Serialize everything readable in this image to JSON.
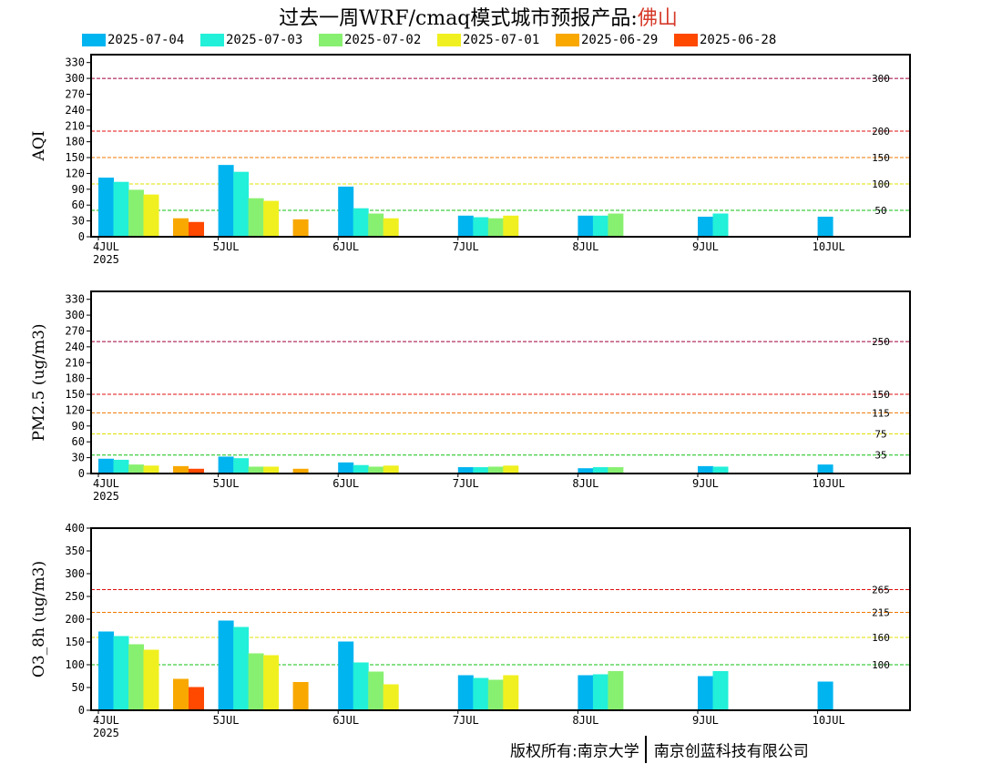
{
  "title": {
    "prefix": "过去一周WRF/cmaq模式城市预报产品:",
    "city": "佛山"
  },
  "colors": {
    "2025-07-04": "#00b4f0",
    "2025-07-03": "#22f0d8",
    "2025-07-02": "#88f070",
    "2025-07-01": "#f0f020",
    "2025-06-29": "#f8a800",
    "2025-06-28": "#ff4800"
  },
  "footer": {
    "left": "版权所有:南京大学",
    "right": "南京创蓝科技有限公司"
  },
  "chart_data": [
    {
      "type": "bar",
      "ylabel": "AQI",
      "ylim": [
        0,
        345
      ],
      "yticks": [
        0,
        30,
        60,
        90,
        120,
        150,
        180,
        210,
        240,
        270,
        300,
        330
      ],
      "categories": [
        "4JUL",
        "5JUL",
        "6JUL",
        "7JUL",
        "8JUL",
        "9JUL",
        "10JUL"
      ],
      "year_label": "2025",
      "thresholds": [
        {
          "value": 300,
          "label": "300",
          "color": "#a0003c"
        },
        {
          "value": 200,
          "label": "200",
          "color": "#e01010"
        },
        {
          "value": 150,
          "label": "150",
          "color": "#f07800"
        },
        {
          "value": 100,
          "label": "100",
          "color": "#e0e000"
        },
        {
          "value": 50,
          "label": "50",
          "color": "#10c010"
        }
      ],
      "series": [
        {
          "name": "2025-07-04",
          "values": [
            112,
            136,
            95,
            40,
            40,
            38,
            38
          ]
        },
        {
          "name": "2025-07-03",
          "values": [
            104,
            123,
            54,
            37,
            40,
            44,
            null
          ]
        },
        {
          "name": "2025-07-02",
          "values": [
            89,
            73,
            44,
            35,
            44,
            null,
            null
          ]
        },
        {
          "name": "2025-07-01",
          "values": [
            80,
            68,
            35,
            40,
            null,
            null,
            null
          ]
        },
        {
          "name": "2025-06-29",
          "values": [
            35,
            33,
            null,
            null,
            null,
            null,
            null
          ]
        },
        {
          "name": "2025-06-28",
          "values": [
            28,
            null,
            null,
            null,
            null,
            null,
            null
          ]
        }
      ]
    },
    {
      "type": "bar",
      "ylabel": "PM2.5 (ug/m3)",
      "ylim": [
        0,
        345
      ],
      "yticks": [
        0,
        30,
        60,
        90,
        120,
        150,
        180,
        210,
        240,
        270,
        300,
        330
      ],
      "categories": [
        "4JUL",
        "5JUL",
        "6JUL",
        "7JUL",
        "8JUL",
        "9JUL",
        "10JUL"
      ],
      "year_label": "2025",
      "thresholds": [
        {
          "value": 250,
          "label": "250",
          "color": "#a0003c"
        },
        {
          "value": 150,
          "label": "150",
          "color": "#e01010"
        },
        {
          "value": 115,
          "label": "115",
          "color": "#f07800"
        },
        {
          "value": 75,
          "label": "75",
          "color": "#e0e000"
        },
        {
          "value": 35,
          "label": "35",
          "color": "#10c010"
        }
      ],
      "series": [
        {
          "name": "2025-07-04",
          "values": [
            28,
            32,
            21,
            12,
            10,
            14,
            17
          ]
        },
        {
          "name": "2025-07-03",
          "values": [
            26,
            29,
            16,
            12,
            12,
            13,
            null
          ]
        },
        {
          "name": "2025-07-02",
          "values": [
            17,
            13,
            13,
            13,
            12,
            null,
            null
          ]
        },
        {
          "name": "2025-07-01",
          "values": [
            15,
            13,
            15,
            15,
            null,
            null,
            null
          ]
        },
        {
          "name": "2025-06-29",
          "values": [
            14,
            9,
            null,
            null,
            null,
            null,
            null
          ]
        },
        {
          "name": "2025-06-28",
          "values": [
            9,
            null,
            null,
            null,
            null,
            null,
            null
          ]
        }
      ]
    },
    {
      "type": "bar",
      "ylabel": "O3_8h (ug/m3)",
      "ylim": [
        0,
        400
      ],
      "yticks": [
        0,
        50,
        100,
        150,
        200,
        250,
        300,
        350,
        400
      ],
      "categories": [
        "4JUL",
        "5JUL",
        "6JUL",
        "7JUL",
        "8JUL",
        "9JUL",
        "10JUL"
      ],
      "year_label": "2025",
      "thresholds": [
        {
          "value": 265,
          "label": "265",
          "color": "#e01010"
        },
        {
          "value": 215,
          "label": "215",
          "color": "#f07800"
        },
        {
          "value": 160,
          "label": "160",
          "color": "#e0e000"
        },
        {
          "value": 100,
          "label": "100",
          "color": "#10c010"
        }
      ],
      "series": [
        {
          "name": "2025-07-04",
          "values": [
            173,
            197,
            151,
            77,
            77,
            75,
            63
          ]
        },
        {
          "name": "2025-07-03",
          "values": [
            163,
            183,
            105,
            71,
            79,
            86,
            null
          ]
        },
        {
          "name": "2025-07-02",
          "values": [
            145,
            125,
            85,
            67,
            86,
            null,
            null
          ]
        },
        {
          "name": "2025-07-01",
          "values": [
            133,
            121,
            57,
            77,
            null,
            null,
            null
          ]
        },
        {
          "name": "2025-06-29",
          "values": [
            69,
            62,
            null,
            null,
            null,
            null,
            null
          ]
        },
        {
          "name": "2025-06-28",
          "values": [
            51,
            null,
            null,
            null,
            null,
            null,
            null
          ]
        }
      ]
    }
  ]
}
